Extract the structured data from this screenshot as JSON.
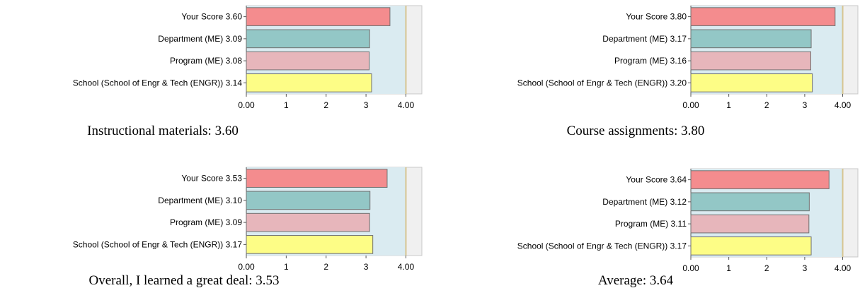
{
  "colors": {
    "plot_bg_white": "#f0f0f0",
    "plot_bg_blue": "#daebf1",
    "gridline": "#d7c591",
    "your_score": "#f48c8e",
    "department": "#93c7c6",
    "program": "#e7b6bb",
    "school": "#fdfd86",
    "bar_border": "#707070"
  },
  "chart_data": [
    {
      "type": "bar",
      "orientation": "horizontal",
      "title": "Instructional materials: 3.60",
      "categories": [
        "Your Score",
        "Department (ME)",
        "Program (ME)",
        "School (School of Engr & Tech (ENGR))"
      ],
      "value_labels": [
        "3.60",
        "3.09",
        "3.08",
        "3.14"
      ],
      "values": [
        3.6,
        3.09,
        3.08,
        3.14
      ],
      "xlim": [
        0,
        4.4
      ],
      "ticks": [
        "0.00",
        "1",
        "2",
        "3",
        "4.00"
      ],
      "tick_values": [
        0,
        1,
        2,
        3,
        4
      ],
      "reference_line": 4,
      "shaded_range": [
        0,
        4
      ]
    },
    {
      "type": "bar",
      "orientation": "horizontal",
      "title": "Course assignments: 3.80",
      "categories": [
        "Your Score",
        "Department (ME)",
        "Program (ME)",
        "School (School of Engr & Tech (ENGR))"
      ],
      "value_labels": [
        "3.80",
        "3.17",
        "3.16",
        "3.20"
      ],
      "values": [
        3.8,
        3.17,
        3.16,
        3.2
      ],
      "xlim": [
        0,
        4.4
      ],
      "ticks": [
        "0.00",
        "1",
        "2",
        "3",
        "4.00"
      ],
      "tick_values": [
        0,
        1,
        2,
        3,
        4
      ],
      "reference_line": 4,
      "shaded_range": [
        0,
        4
      ]
    },
    {
      "type": "bar",
      "orientation": "horizontal",
      "title": "Overall, I learned a great deal: 3.53",
      "categories": [
        "Your Score",
        "Department (ME)",
        "Program (ME)",
        "School (School of Engr & Tech (ENGR))"
      ],
      "value_labels": [
        "3.53",
        "3.10",
        "3.09",
        "3.17"
      ],
      "values": [
        3.53,
        3.1,
        3.09,
        3.17
      ],
      "xlim": [
        0,
        4.4
      ],
      "ticks": [
        "0.00",
        "1",
        "2",
        "3",
        "4.00"
      ],
      "tick_values": [
        0,
        1,
        2,
        3,
        4
      ],
      "reference_line": 4,
      "shaded_range": [
        0,
        4
      ]
    },
    {
      "type": "bar",
      "orientation": "horizontal",
      "title": "Average: 3.64",
      "categories": [
        "Your Score",
        "Department (ME)",
        "Program (ME)",
        "School (School of Engr & Tech (ENGR))"
      ],
      "value_labels": [
        "3.64",
        "3.12",
        "3.11",
        "3.17"
      ],
      "values": [
        3.64,
        3.12,
        3.11,
        3.17
      ],
      "xlim": [
        0,
        4.4
      ],
      "ticks": [
        "0.00",
        "1",
        "2",
        "3",
        "4.00"
      ],
      "tick_values": [
        0,
        1,
        2,
        3,
        4
      ],
      "reference_line": 4,
      "shaded_range": [
        0,
        4
      ]
    }
  ]
}
